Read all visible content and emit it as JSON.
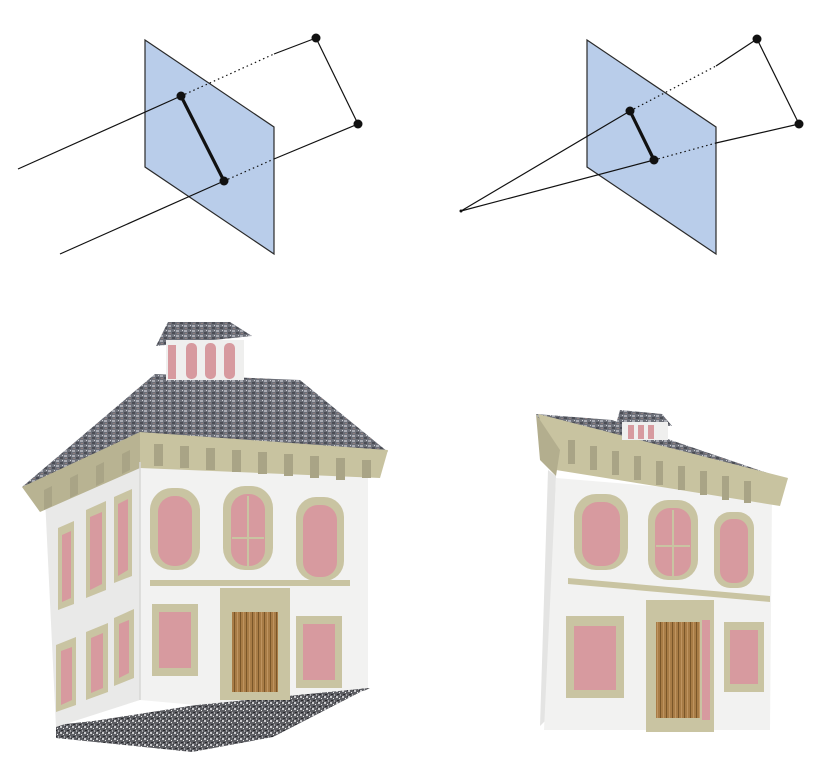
{
  "figure": {
    "panels": [
      {
        "id": "parallel-projection",
        "projection": "parallel"
      },
      {
        "id": "perspective-projection",
        "projection": "perspective"
      },
      {
        "id": "parallel-rendered-house",
        "projection": "parallel"
      },
      {
        "id": "perspective-rendered-house",
        "projection": "perspective"
      }
    ],
    "colors": {
      "image_plane_fill": "#b9cdea",
      "image_plane_stroke": "#2a2a2a",
      "line": "#111111",
      "wall": "#efefee",
      "trim": "#c9c4a2",
      "window_glass": "#d79a9f",
      "door_wood": "#a57a45",
      "roof": "#6f7178",
      "ground": "#55565b"
    }
  }
}
